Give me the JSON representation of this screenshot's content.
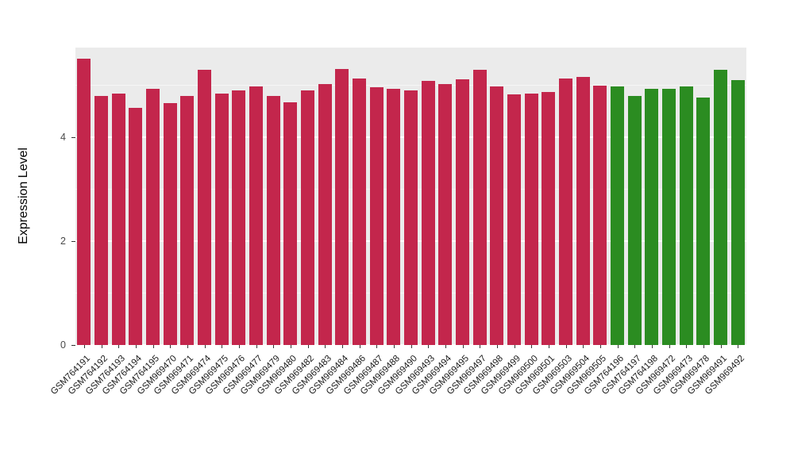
{
  "chart_data": {
    "type": "bar",
    "title": "",
    "xlabel": "",
    "ylabel": "Expression Level",
    "ylim": [
      0,
      5.72
    ],
    "yticks": [
      0,
      2,
      4
    ],
    "minor_gridlines": [
      1,
      3,
      5
    ],
    "grid": "on",
    "legend_position": "none",
    "panel_background": "#EBEBEB",
    "grid_color": "#FFFFFF",
    "group_colors": {
      "red": "#C3264C",
      "green": "#2B8C21"
    },
    "categories": [
      "GSM764191",
      "GSM764192",
      "GSM764193",
      "GSM764194",
      "GSM764195",
      "GSM969470",
      "GSM969471",
      "GSM969474",
      "GSM969475",
      "GSM969476",
      "GSM969477",
      "GSM969479",
      "GSM969480",
      "GSM969482",
      "GSM969483",
      "GSM969484",
      "GSM969486",
      "GSM969487",
      "GSM969488",
      "GSM969490",
      "GSM969493",
      "GSM969494",
      "GSM969495",
      "GSM969497",
      "GSM969498",
      "GSM969499",
      "GSM969500",
      "GSM969501",
      "GSM969503",
      "GSM969504",
      "GSM969505",
      "GSM764196",
      "GSM764197",
      "GSM764198",
      "GSM969472",
      "GSM969473",
      "GSM969478",
      "GSM969491",
      "GSM969492"
    ],
    "values": [
      5.5,
      4.79,
      4.84,
      4.56,
      4.93,
      4.66,
      4.79,
      5.3,
      4.84,
      4.89,
      4.98,
      4.79,
      4.67,
      4.9,
      5.02,
      5.31,
      5.13,
      4.95,
      4.93,
      4.9,
      5.08,
      5.02,
      5.11,
      5.3,
      4.98,
      4.82,
      4.84,
      4.87,
      5.13,
      5.15,
      4.99,
      4.98,
      4.79,
      4.93,
      4.92,
      4.98,
      4.76,
      5.3,
      5.1
    ],
    "groups": [
      "red",
      "red",
      "red",
      "red",
      "red",
      "red",
      "red",
      "red",
      "red",
      "red",
      "red",
      "red",
      "red",
      "red",
      "red",
      "red",
      "red",
      "red",
      "red",
      "red",
      "red",
      "red",
      "red",
      "red",
      "red",
      "red",
      "red",
      "red",
      "red",
      "red",
      "red",
      "green",
      "green",
      "green",
      "green",
      "green",
      "green",
      "green",
      "green"
    ]
  }
}
